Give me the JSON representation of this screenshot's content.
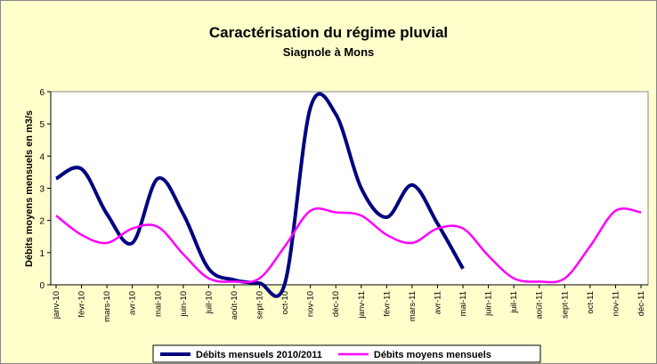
{
  "chart_data": {
    "type": "line",
    "title": "Caractérisation du régime pluvial",
    "subtitle": "Siagnole à Mons",
    "y_label": "Débits moyens mensuels en m3/s",
    "categories": [
      "janv-10",
      "févr-10",
      "mars-10",
      "avr-10",
      "mai-10",
      "juin-10",
      "juil-10",
      "août-10",
      "sept-10",
      "oct-10",
      "nov-10",
      "déc-10",
      "janv-11",
      "févr-11",
      "mars-11",
      "avr-11",
      "mai-11",
      "juin-11",
      "juil-11",
      "août-11",
      "sept-11",
      "oct-11",
      "nov-11",
      "déc-11"
    ],
    "series": [
      {
        "name": "Débits mensuels 2010/2011",
        "color": "#000080",
        "values": [
          3.3,
          3.6,
          2.2,
          1.3,
          3.3,
          2.2,
          0.5,
          0.15,
          0.05,
          0.05,
          5.5,
          5.3,
          3.0,
          2.1,
          3.1,
          1.9,
          0.5,
          null,
          null,
          null,
          null,
          null,
          null,
          null
        ]
      },
      {
        "name": "Débits moyens mensuels",
        "color": "#FF00FF",
        "values": [
          2.15,
          1.55,
          1.3,
          1.75,
          1.8,
          0.95,
          0.2,
          0.1,
          0.2,
          1.2,
          2.3,
          2.25,
          2.15,
          1.55,
          1.3,
          1.75,
          1.75,
          0.9,
          0.2,
          0.1,
          0.2,
          1.2,
          2.3,
          2.25
        ]
      }
    ],
    "ylim": [
      0,
      6
    ],
    "yticks": [
      0,
      1,
      2,
      3,
      4,
      5,
      6
    ],
    "grid": false,
    "legend": "bottom",
    "smooth": true
  }
}
